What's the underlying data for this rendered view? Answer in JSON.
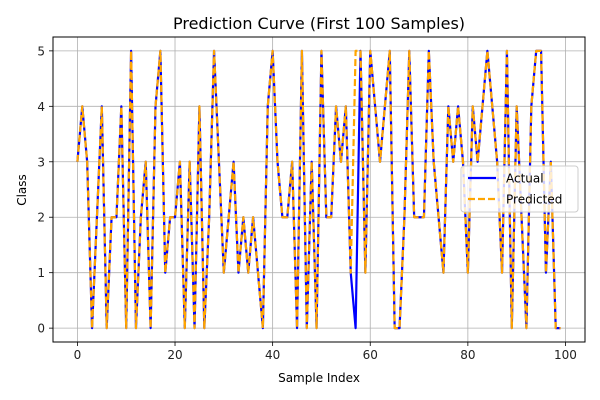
{
  "chart_data": {
    "type": "line",
    "title": "Prediction Curve (First 100 Samples)",
    "xlabel": "Sample Index",
    "ylabel": "Class",
    "xlim": [
      -5,
      104
    ],
    "ylim": [
      -0.25,
      5.25
    ],
    "xticks": [
      0,
      20,
      40,
      60,
      80,
      100
    ],
    "yticks": [
      0,
      1,
      2,
      3,
      4,
      5
    ],
    "grid": true,
    "legend_position": "center-right",
    "x": [
      0,
      1,
      2,
      3,
      4,
      5,
      6,
      7,
      8,
      9,
      10,
      11,
      12,
      13,
      14,
      15,
      16,
      17,
      18,
      19,
      20,
      21,
      22,
      23,
      24,
      25,
      26,
      27,
      28,
      29,
      30,
      31,
      32,
      33,
      34,
      35,
      36,
      37,
      38,
      39,
      40,
      41,
      42,
      43,
      44,
      45,
      46,
      47,
      48,
      49,
      50,
      51,
      52,
      53,
      54,
      55,
      56,
      57,
      58,
      59,
      60,
      61,
      62,
      63,
      64,
      65,
      66,
      67,
      68,
      69,
      70,
      71,
      72,
      73,
      74,
      75,
      76,
      77,
      78,
      79,
      80,
      81,
      82,
      83,
      84,
      85,
      86,
      87,
      88,
      89,
      90,
      91,
      92,
      93,
      94,
      95,
      96,
      97,
      98,
      99
    ],
    "series": [
      {
        "name": "Actual",
        "color": "#0000ff",
        "style": "solid",
        "values": [
          3,
          4,
          3,
          0,
          2,
          4,
          0,
          2,
          2,
          4,
          0,
          5,
          0,
          2,
          3,
          0,
          4,
          5,
          1,
          2,
          2,
          3,
          0,
          3,
          0,
          4,
          0,
          2,
          5,
          3,
          1,
          2,
          3,
          1,
          2,
          1,
          2,
          1,
          0,
          4,
          5,
          3,
          2,
          2,
          3,
          0,
          5,
          0,
          3,
          0,
          5,
          2,
          2,
          4,
          3,
          4,
          1,
          0,
          5,
          1,
          5,
          4,
          3,
          4,
          5,
          0,
          0,
          2,
          5,
          2,
          2,
          2,
          5,
          3,
          2,
          1,
          4,
          3,
          4,
          3,
          1,
          4,
          3,
          4,
          5,
          4,
          3,
          1,
          5,
          0,
          4,
          2,
          0,
          4,
          5,
          5,
          1,
          3,
          0,
          0
        ]
      },
      {
        "name": "Predicted",
        "color": "#ffa500",
        "style": "dashed",
        "values": [
          3,
          4,
          3,
          0,
          2,
          4,
          0,
          2,
          2,
          4,
          0,
          5,
          0,
          2,
          3,
          0,
          4,
          5,
          1,
          2,
          2,
          3,
          0,
          3,
          0,
          4,
          0,
          2,
          5,
          3,
          1,
          2,
          3,
          1,
          2,
          1,
          2,
          1,
          0,
          4,
          5,
          3,
          2,
          2,
          3,
          0,
          5,
          0,
          3,
          0,
          5,
          2,
          2,
          4,
          3,
          4,
          1,
          5,
          5,
          1,
          5,
          4,
          3,
          4,
          5,
          0,
          0,
          2,
          5,
          2,
          2,
          2,
          5,
          3,
          2,
          1,
          4,
          3,
          4,
          3,
          1,
          4,
          3,
          4,
          5,
          4,
          3,
          1,
          5,
          0,
          4,
          2,
          0,
          4,
          5,
          5,
          1,
          3,
          0,
          0
        ]
      }
    ]
  }
}
